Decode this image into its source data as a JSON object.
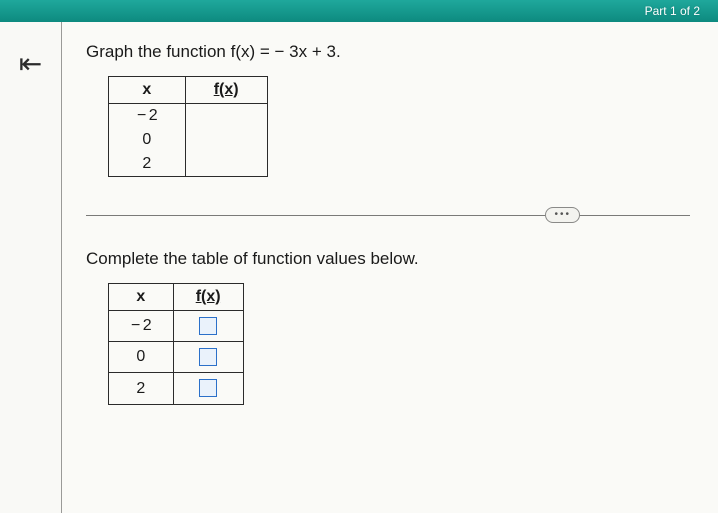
{
  "topbar": {
    "part_label": "Part 1 of 2"
  },
  "question": {
    "prompt": "Graph the function f(x) = − 3x + 3.",
    "table": {
      "headers": {
        "x": "x",
        "fx": "f(x)"
      },
      "rows": [
        {
          "x": "− 2",
          "fx": ""
        },
        {
          "x": "0",
          "fx": ""
        },
        {
          "x": "2",
          "fx": ""
        }
      ]
    }
  },
  "sub": {
    "prompt": "Complete the table of function values below.",
    "table": {
      "headers": {
        "x": "x",
        "fx": "f(x)"
      },
      "rows": [
        {
          "x": "− 2"
        },
        {
          "x": "0"
        },
        {
          "x": "2"
        }
      ]
    }
  },
  "style": {
    "topbar_bg_from": "#1fa89c",
    "topbar_bg_to": "#0d8a7f",
    "page_bg": "#fafaf7",
    "border_color": "#2b2b2b",
    "input_border": "#2b70c9",
    "input_bg": "#eaf2fb",
    "divider_color": "#7a7a78",
    "text_color": "#1a1a1a",
    "font_size_body": 17,
    "font_size_table": 16
  }
}
